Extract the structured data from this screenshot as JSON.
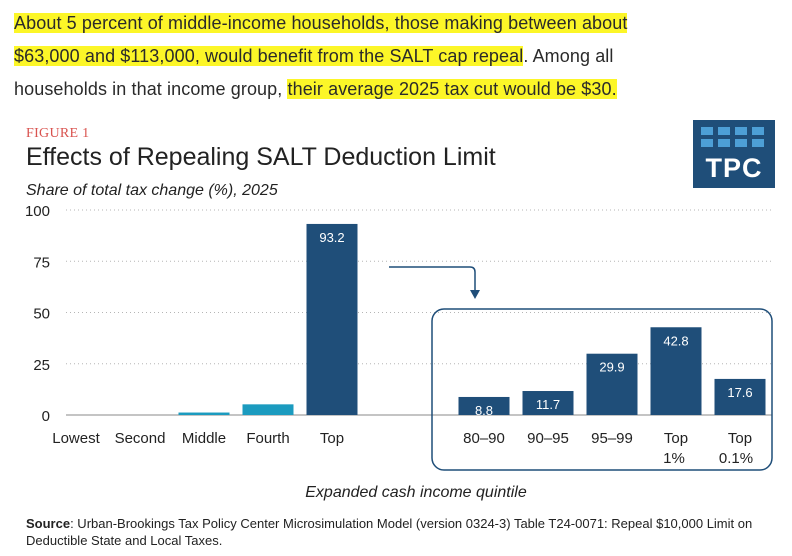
{
  "intro": {
    "seg1": "About 5 percent of middle-income households, those making between about",
    "seg2": "$63,000 and $113,000, would benefit from the SALT cap repeal",
    "seg3": ". Among all",
    "seg4": "households in that income group, ",
    "seg5": "their average 2025 tax cut would be $30."
  },
  "colors": {
    "highlight": "#fcf628",
    "bar_dark": "#1f4e79",
    "bar_light": "#1b9bbf",
    "figure_label": "#d9534f",
    "inset_border": "#1f4e79"
  },
  "figure": {
    "label": "FIGURE 1",
    "title": "Effects of Repealing SALT Deduction Limit",
    "subtitle": "Share of total tax change (%), 2025"
  },
  "logo": {
    "text": "TPC",
    "icon": "grid-squares-icon"
  },
  "chart_data": {
    "type": "bar",
    "title": "Effects of Repealing SALT Deduction Limit",
    "ylabel": "Share of total tax change (%), 2025",
    "xlabel": "Expanded cash income quintile",
    "ylim": [
      0,
      100
    ],
    "yticks": [
      "0",
      "25",
      "50",
      "75",
      "100"
    ],
    "grid": true,
    "main": {
      "categories": [
        "Lowest",
        "Second",
        "Middle",
        "Fourth",
        "Top"
      ],
      "values": [
        0,
        0,
        1.2,
        5.2,
        93.2
      ],
      "labels": [
        "",
        "",
        "",
        "",
        "93.2"
      ],
      "colors": [
        "#1b9bbf",
        "#1b9bbf",
        "#1b9bbf",
        "#1b9bbf",
        "#1f4e79"
      ]
    },
    "inset": {
      "categories": [
        [
          "80–90"
        ],
        [
          "90–95"
        ],
        [
          "95–99"
        ],
        [
          "Top",
          "1%"
        ],
        [
          "Top",
          "0.1%"
        ]
      ],
      "values": [
        8.8,
        11.7,
        29.9,
        42.8,
        17.6
      ],
      "labels": [
        "8.8",
        "11.7",
        "29.9",
        "42.8",
        "17.6"
      ]
    }
  },
  "source": {
    "label": "Source",
    "text": ": Urban-Brookings Tax Policy Center Microsimulation Model (version 0324-3) Table T24-0071: Repeal $10,000 Limit on Deductible State and Local Taxes."
  }
}
